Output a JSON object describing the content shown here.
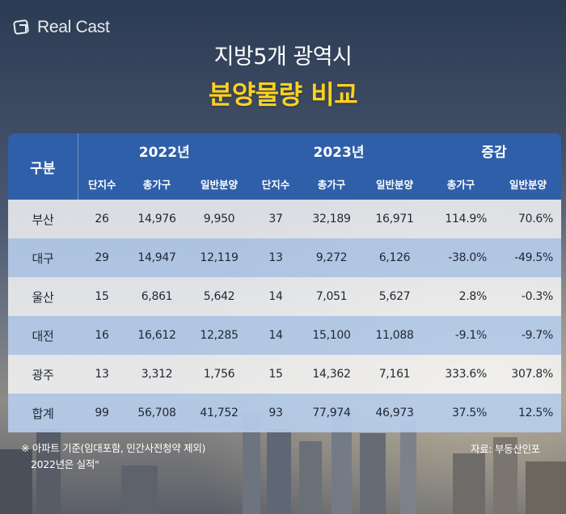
{
  "brand": {
    "logo_text": "Real Cast",
    "logo_icon": "realcast-logo-icon"
  },
  "title": {
    "line1": "지방5개 광역시",
    "line2": "분양물량 비교"
  },
  "chart_data": {
    "type": "table",
    "header_top": {
      "category": "구분",
      "groups": [
        "2022년",
        "2023년",
        "증감"
      ]
    },
    "columns": [
      "단지수",
      "총가구",
      "일반분양",
      "단지수",
      "총가구",
      "일반분양",
      "총가구",
      "일반분양"
    ],
    "rows": [
      {
        "region": "부산",
        "values": [
          "26",
          "14,976",
          "9,950",
          "37",
          "32,189",
          "16,971",
          "114.9%",
          "70.6%"
        ]
      },
      {
        "region": "대구",
        "values": [
          "29",
          "14,947",
          "12,119",
          "13",
          "9,272",
          "6,126",
          "-38.0%",
          "-49.5%"
        ]
      },
      {
        "region": "울산",
        "values": [
          "15",
          "6,861",
          "5,642",
          "14",
          "7,051",
          "5,627",
          "2.8%",
          "-0.3%"
        ]
      },
      {
        "region": "대전",
        "values": [
          "16",
          "16,612",
          "12,285",
          "14",
          "15,100",
          "11,088",
          "-9.1%",
          "-9.7%"
        ]
      },
      {
        "region": "광주",
        "values": [
          "13",
          "3,312",
          "1,756",
          "15",
          "14,362",
          "7,161",
          "333.6%",
          "307.8%"
        ]
      },
      {
        "region": "합계",
        "values": [
          "99",
          "56,708",
          "41,752",
          "93",
          "77,974",
          "46,973",
          "37.5%",
          "12.5%"
        ]
      }
    ]
  },
  "footnote": {
    "line1": "※ 아파트 기준(임대포함, 민간사전청약 제외)",
    "line2": "2022년은 실적\""
  },
  "source": "자료: 부동산인포",
  "colors": {
    "header_blue": "#2f5fa8",
    "title_yellow": "#ffd21f",
    "row_blue": "#b7ceec"
  }
}
